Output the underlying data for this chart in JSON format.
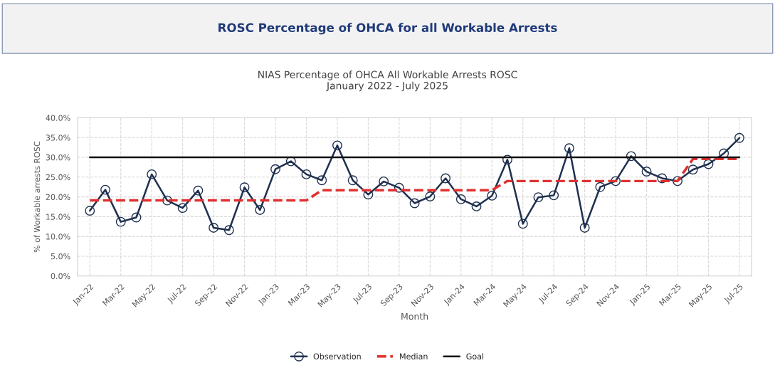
{
  "chart_data": {
    "type": "line",
    "title": "ROSC Percentage of OHCA for all Workable Arrests",
    "subtitle": "NIAS Percentage of OHCA All Workable Arrests ROSC\nJanuary 2022 - July 2025",
    "xlabel": "Month",
    "ylabel": "% of Workable arrests ROSC",
    "categories": [
      "Jan-22",
      null,
      "Mar-22",
      null,
      "May-22",
      null,
      "Jul-22",
      null,
      "Sep-22",
      null,
      "Nov-22",
      null,
      "Jan-23",
      null,
      "Mar-23",
      null,
      "May-23",
      null,
      "Jul-23",
      null,
      "Sep-23",
      null,
      "Nov-23",
      null,
      "Jan-24",
      null,
      "Mar-24",
      null,
      "May-24",
      null,
      "Jul-24",
      null,
      "Sep-24",
      null,
      "Nov-24",
      null,
      "Jan-25",
      null,
      "Mar-25",
      null,
      "May-25",
      null,
      "Jul-25"
    ],
    "series": [
      {
        "name": "Observation",
        "color": "#1f3050",
        "marker": "circle",
        "line_style": "solid",
        "values": [
          16.5,
          21.8,
          13.7,
          14.8,
          25.7,
          19.1,
          17.2,
          21.6,
          12.2,
          11.6,
          22.4,
          16.7,
          27.0,
          29.0,
          25.7,
          24.2,
          33.0,
          24.2,
          20.6,
          23.9,
          22.3,
          18.4,
          20.1,
          24.7,
          19.4,
          17.6,
          20.3,
          29.4,
          13.2,
          19.9,
          20.4,
          32.3,
          12.2,
          22.5,
          24.0,
          30.3,
          26.4,
          24.7,
          24.0,
          26.9,
          28.3,
          31.0,
          34.9
        ]
      },
      {
        "name": "Median",
        "color": "#e03030",
        "marker": "none",
        "line_style": "dashed",
        "values": [
          19.1,
          19.1,
          19.1,
          19.1,
          19.1,
          19.1,
          19.1,
          19.1,
          19.1,
          19.1,
          19.1,
          19.1,
          19.1,
          19.1,
          19.1,
          21.7,
          21.7,
          21.7,
          21.7,
          21.7,
          21.7,
          21.7,
          21.7,
          21.7,
          21.7,
          21.7,
          21.7,
          24.0,
          24.0,
          24.0,
          24.0,
          24.0,
          24.0,
          24.0,
          24.0,
          24.0,
          24.0,
          24.0,
          24.0,
          29.6,
          29.6,
          29.6,
          29.6
        ]
      },
      {
        "name": "Goal",
        "color": "#111111",
        "marker": "none",
        "line_style": "solid",
        "values": [
          30,
          30,
          30,
          30,
          30,
          30,
          30,
          30,
          30,
          30,
          30,
          30,
          30,
          30,
          30,
          30,
          30,
          30,
          30,
          30,
          30,
          30,
          30,
          30,
          30,
          30,
          30,
          30,
          30,
          30,
          30,
          30,
          30,
          30,
          30,
          30,
          30,
          30,
          30,
          30,
          30,
          30,
          30
        ]
      }
    ],
    "ylim": [
      0,
      40
    ],
    "yticks": [
      {
        "value": 0,
        "label": "0.0%"
      },
      {
        "value": 5,
        "label": "5.0%"
      },
      {
        "value": 10,
        "label": "10.0%"
      },
      {
        "value": 15,
        "label": "15.0%"
      },
      {
        "value": 20,
        "label": "20.0%"
      },
      {
        "value": 25,
        "label": "25.0%"
      },
      {
        "value": 30,
        "label": "30.0%"
      },
      {
        "value": 35,
        "label": "35.0%"
      },
      {
        "value": 40,
        "label": "40.0%"
      }
    ],
    "grid": true,
    "legend": "bottom"
  }
}
